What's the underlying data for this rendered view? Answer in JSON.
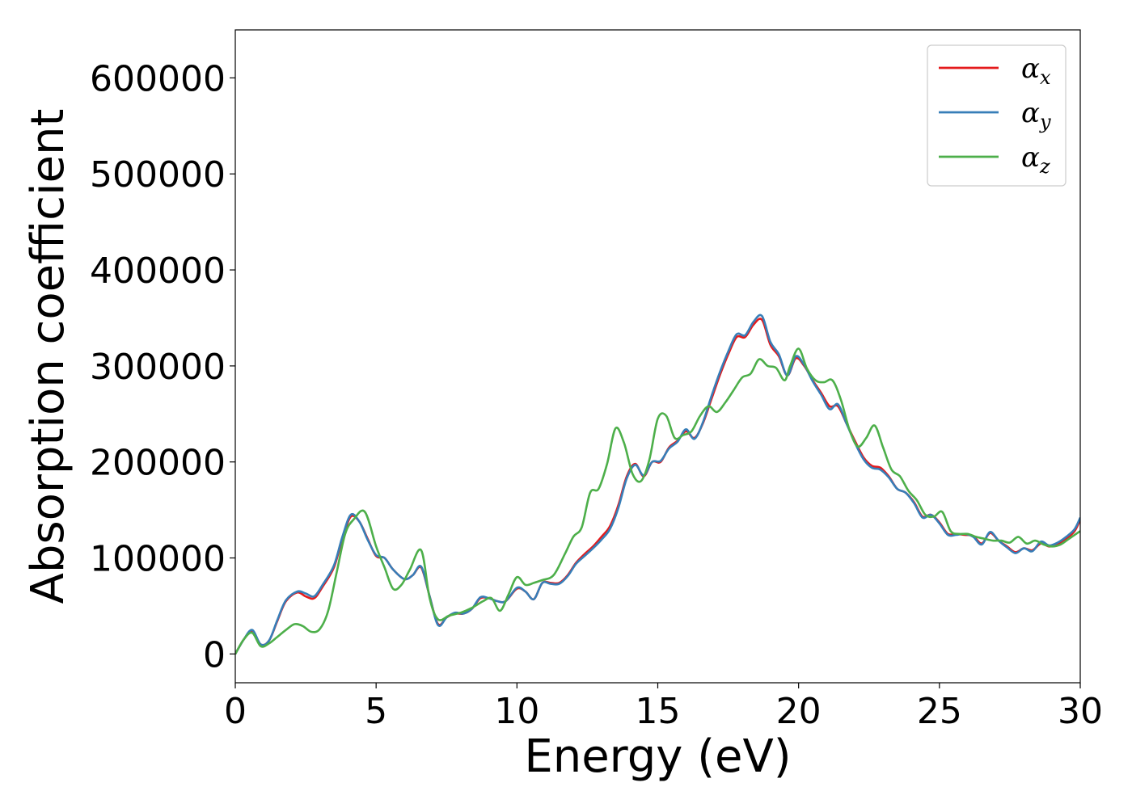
{
  "chart_data": {
    "type": "line",
    "title": "",
    "xlabel": "Energy (eV)",
    "ylabel": "Absorption coefficient",
    "xlim": [
      0,
      30
    ],
    "ylim": [
      -30000,
      650000
    ],
    "xticks": [
      0,
      5,
      10,
      15,
      20,
      25,
      30
    ],
    "yticks": [
      0,
      100000,
      200000,
      300000,
      400000,
      500000,
      600000
    ],
    "grid": false,
    "legend_position": "top-right",
    "series": [
      {
        "name": "αx",
        "symbol": "α",
        "subscript": "x",
        "color": "#e41a1c",
        "x": [
          0,
          0.3,
          0.6,
          0.9,
          1.2,
          1.5,
          1.8,
          2.2,
          2.5,
          2.8,
          3.1,
          3.5,
          3.8,
          4.1,
          4.4,
          4.7,
          5.0,
          5.3,
          5.6,
          6.0,
          6.3,
          6.6,
          6.9,
          7.2,
          7.5,
          7.8,
          8.1,
          8.4,
          8.7,
          9.0,
          9.3,
          9.6,
          10.0,
          10.3,
          10.6,
          10.9,
          11.2,
          11.5,
          11.8,
          12.1,
          12.4,
          12.7,
          13.0,
          13.3,
          13.6,
          13.9,
          14.2,
          14.5,
          14.8,
          15.1,
          15.4,
          15.7,
          16.0,
          16.3,
          16.6,
          16.9,
          17.2,
          17.5,
          17.8,
          18.1,
          18.4,
          18.7,
          19.0,
          19.3,
          19.6,
          19.9,
          20.2,
          20.5,
          20.8,
          21.1,
          21.4,
          21.7,
          22.0,
          22.3,
          22.6,
          22.9,
          23.2,
          23.5,
          23.8,
          24.1,
          24.4,
          24.7,
          25.0,
          25.3,
          25.6,
          25.9,
          26.2,
          26.5,
          26.8,
          27.1,
          27.4,
          27.7,
          28.0,
          28.3,
          28.6,
          28.9,
          29.2,
          29.5,
          29.8,
          30.0
        ],
        "values": [
          0,
          15000,
          24000,
          10000,
          14000,
          35000,
          55000,
          64000,
          60000,
          58000,
          70000,
          90000,
          120000,
          143000,
          138000,
          120000,
          102000,
          100000,
          88000,
          78000,
          82000,
          90000,
          60000,
          31000,
          38000,
          42000,
          42000,
          47000,
          58000,
          58000,
          55000,
          55000,
          68000,
          65000,
          57000,
          74000,
          74000,
          74000,
          82000,
          95000,
          104000,
          112000,
          122000,
          133000,
          155000,
          185000,
          198000,
          185000,
          200000,
          200000,
          215000,
          222000,
          232000,
          225000,
          240000,
          265000,
          290000,
          312000,
          330000,
          330000,
          343000,
          348000,
          322000,
          310000,
          290000,
          308000,
          300000,
          285000,
          272000,
          258000,
          258000,
          240000,
          222000,
          205000,
          196000,
          194000,
          185000,
          172000,
          168000,
          158000,
          143000,
          145000,
          137000,
          125000,
          125000,
          124000,
          123000,
          115000,
          126000,
          118000,
          112000,
          106000,
          110000,
          108000,
          115000,
          112000,
          114000,
          120000,
          128000,
          140000
        ]
      },
      {
        "name": "αy",
        "symbol": "α",
        "subscript": "y",
        "color": "#377eb8",
        "x": [
          0,
          0.3,
          0.6,
          0.9,
          1.2,
          1.5,
          1.8,
          2.2,
          2.5,
          2.8,
          3.1,
          3.5,
          3.8,
          4.1,
          4.4,
          4.7,
          5.0,
          5.3,
          5.6,
          6.0,
          6.3,
          6.6,
          6.9,
          7.2,
          7.5,
          7.8,
          8.1,
          8.4,
          8.7,
          9.0,
          9.3,
          9.6,
          10.0,
          10.3,
          10.6,
          10.9,
          11.2,
          11.5,
          11.8,
          12.1,
          12.4,
          12.7,
          13.0,
          13.3,
          13.6,
          13.9,
          14.2,
          14.5,
          14.8,
          15.1,
          15.4,
          15.7,
          16.0,
          16.3,
          16.6,
          16.9,
          17.2,
          17.5,
          17.8,
          18.1,
          18.4,
          18.7,
          19.0,
          19.3,
          19.6,
          19.9,
          20.2,
          20.5,
          20.8,
          21.1,
          21.4,
          21.7,
          22.0,
          22.3,
          22.6,
          22.9,
          23.2,
          23.5,
          23.8,
          24.1,
          24.4,
          24.7,
          25.0,
          25.3,
          25.6,
          25.9,
          26.2,
          26.5,
          26.8,
          27.1,
          27.4,
          27.7,
          28.0,
          28.3,
          28.6,
          28.9,
          29.2,
          29.5,
          29.8,
          30.0
        ],
        "values": [
          0,
          15000,
          25000,
          10000,
          14000,
          36000,
          56000,
          65000,
          63000,
          60000,
          72000,
          92000,
          122000,
          145000,
          138000,
          119000,
          103000,
          100000,
          88000,
          78000,
          82000,
          91000,
          60000,
          30000,
          38000,
          43000,
          42000,
          47000,
          59000,
          58000,
          55000,
          55000,
          69000,
          65000,
          57000,
          74000,
          73000,
          73000,
          81000,
          94000,
          102000,
          110000,
          119000,
          130000,
          152000,
          183000,
          197000,
          186000,
          200000,
          201000,
          214000,
          221000,
          234000,
          224000,
          241000,
          268000,
          293000,
          315000,
          333000,
          332000,
          346000,
          352000,
          325000,
          312000,
          290000,
          310000,
          301000,
          284000,
          270000,
          255000,
          260000,
          240000,
          220000,
          203000,
          194000,
          192000,
          184000,
          172000,
          168000,
          157000,
          142000,
          145000,
          136000,
          124000,
          124000,
          125000,
          122000,
          114000,
          127000,
          118000,
          111000,
          105000,
          110000,
          107000,
          117000,
          113000,
          116000,
          122000,
          130000,
          142000
        ]
      },
      {
        "name": "αz",
        "symbol": "α",
        "subscript": "z",
        "color": "#4daf4a",
        "x": [
          0,
          0.3,
          0.6,
          0.9,
          1.2,
          1.5,
          1.8,
          2.1,
          2.4,
          2.7,
          3.0,
          3.3,
          3.6,
          3.9,
          4.2,
          4.6,
          5.0,
          5.3,
          5.6,
          5.9,
          6.2,
          6.6,
          6.9,
          7.2,
          7.6,
          8.0,
          8.4,
          8.8,
          9.1,
          9.4,
          9.7,
          10.0,
          10.3,
          10.6,
          10.9,
          11.3,
          11.7,
          12.0,
          12.3,
          12.6,
          12.9,
          13.2,
          13.5,
          13.8,
          14.1,
          14.4,
          14.7,
          15.0,
          15.3,
          15.6,
          15.9,
          16.2,
          16.5,
          16.8,
          17.1,
          17.4,
          17.7,
          18.0,
          18.3,
          18.6,
          18.9,
          19.2,
          19.5,
          19.7,
          20.0,
          20.3,
          20.6,
          20.9,
          21.2,
          21.5,
          21.8,
          22.1,
          22.4,
          22.7,
          23.0,
          23.3,
          23.6,
          23.9,
          24.2,
          24.5,
          24.8,
          25.1,
          25.4,
          25.7,
          26.0,
          26.3,
          26.6,
          26.9,
          27.2,
          27.5,
          27.8,
          28.1,
          28.4,
          28.7,
          29.0,
          29.3,
          29.6,
          30.0
        ],
        "values": [
          0,
          15000,
          22000,
          8000,
          11000,
          18000,
          25000,
          31000,
          29000,
          23000,
          26000,
          45000,
          85000,
          125000,
          140000,
          148000,
          112000,
          90000,
          68000,
          72000,
          88000,
          108000,
          58000,
          36000,
          40000,
          43000,
          48000,
          55000,
          58000,
          45000,
          62000,
          80000,
          72000,
          74000,
          77000,
          82000,
          104000,
          122000,
          132000,
          168000,
          172000,
          198000,
          235000,
          220000,
          188000,
          180000,
          202000,
          245000,
          248000,
          225000,
          228000,
          232000,
          248000,
          258000,
          252000,
          262000,
          275000,
          288000,
          292000,
          307000,
          300000,
          298000,
          285000,
          300000,
          318000,
          297000,
          285000,
          283000,
          285000,
          265000,
          234000,
          216000,
          225000,
          238000,
          215000,
          192000,
          185000,
          170000,
          160000,
          145000,
          143000,
          148000,
          128000,
          125000,
          125000,
          122000,
          120000,
          118000,
          118000,
          116000,
          122000,
          115000,
          118000,
          114000,
          112000,
          114000,
          120000,
          128000
        ]
      }
    ]
  }
}
